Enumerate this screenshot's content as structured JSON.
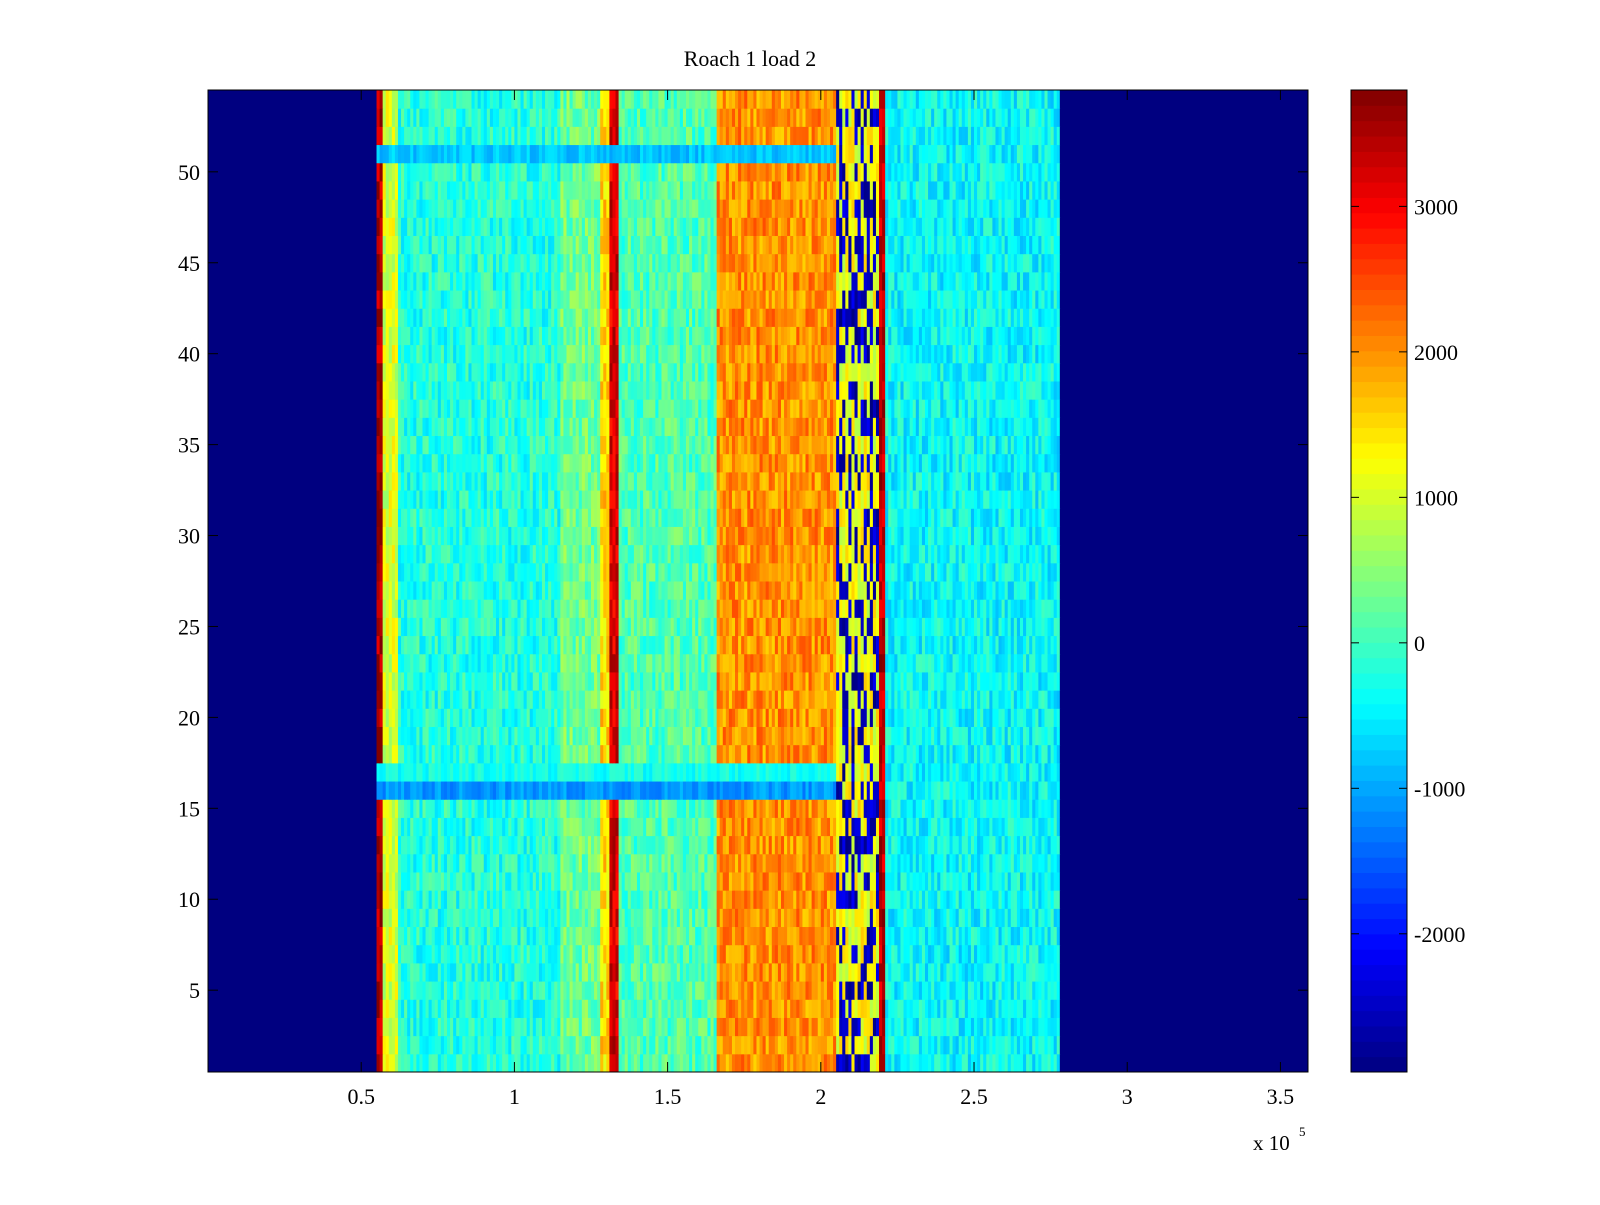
{
  "chart_data": {
    "type": "heatmap",
    "title": "Roach 1 load 2",
    "xlabel": "",
    "ylabel": "",
    "x_multiplier_label": "x 10",
    "x_multiplier_exponent": "5",
    "xlim": [
      0,
      3.59
    ],
    "ylim": [
      0.5,
      54.5
    ],
    "x_ticks": [
      0.5,
      1,
      1.5,
      2,
      2.5,
      3,
      3.5
    ],
    "x_tick_labels": [
      "0.5",
      "1",
      "1.5",
      "2",
      "2.5",
      "3",
      "3.5"
    ],
    "y_ticks": [
      5,
      10,
      15,
      20,
      25,
      30,
      35,
      40,
      45,
      50
    ],
    "y_tick_labels": [
      "5",
      "10",
      "15",
      "20",
      "25",
      "30",
      "35",
      "40",
      "45",
      "50"
    ],
    "rows": 54,
    "colormap": "jet",
    "colorbar": {
      "clim": [
        -2950,
        3800
      ],
      "ticks": [
        -2000,
        -1000,
        0,
        1000,
        2000,
        3000
      ],
      "tick_labels": [
        "-2000",
        "-1000",
        "0",
        "1000",
        "2000",
        "3000"
      ]
    },
    "background_value": -2950,
    "bands": [
      {
        "x_start": 0.0,
        "x_end": 0.55,
        "value": -2950
      },
      {
        "x_start": 0.55,
        "x_end": 0.57,
        "value": 3500
      },
      {
        "x_start": 0.57,
        "x_end": 0.62,
        "value": 1000
      },
      {
        "x_start": 0.62,
        "x_end": 1.15,
        "value": -200
      },
      {
        "x_start": 1.15,
        "x_end": 1.28,
        "value": 300
      },
      {
        "x_start": 1.28,
        "x_end": 1.31,
        "value": 1500
      },
      {
        "x_start": 1.31,
        "x_end": 1.34,
        "value": 3200
      },
      {
        "x_start": 1.34,
        "x_end": 1.66,
        "value": 100
      },
      {
        "x_start": 1.66,
        "x_end": 2.05,
        "value": 2000
      },
      {
        "x_start": 2.05,
        "x_end": 2.19,
        "value": 1200
      },
      {
        "x_start": 2.19,
        "x_end": 2.21,
        "value": 3400
      },
      {
        "x_start": 2.21,
        "x_end": 2.78,
        "value": -400
      },
      {
        "x_start": 2.78,
        "x_end": 3.59,
        "value": -2950
      }
    ],
    "anomaly_rows": [
      {
        "row": 16,
        "value": -1100
      },
      {
        "row": 17,
        "value": -300
      },
      {
        "row": 51,
        "value": -800
      }
    ]
  }
}
